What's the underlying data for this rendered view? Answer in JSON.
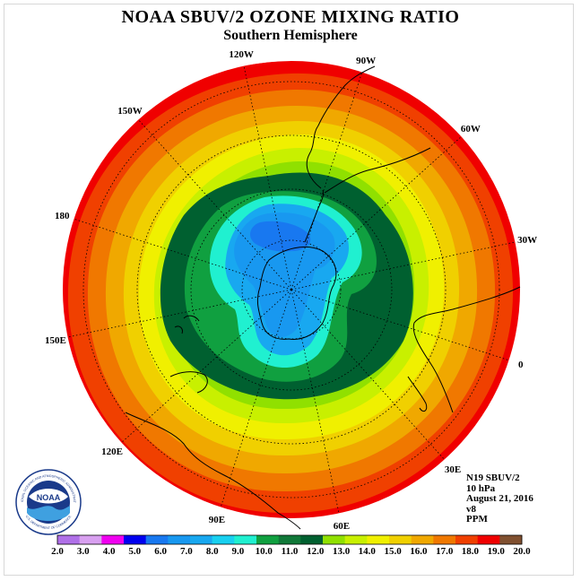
{
  "header": {
    "title": "NOAA SBUV/2 OZONE MIXING RATIO",
    "subtitle": "Southern Hemisphere"
  },
  "map": {
    "projection": "south-polar-stereographic",
    "hemisphere": "Southern",
    "longitude_labels": [
      "90W",
      "60W",
      "30W",
      "0",
      "30E",
      "60E",
      "90E",
      "120E",
      "150E",
      "180",
      "150W",
      "120W"
    ],
    "colors": {
      "land_outline": "#000000",
      "grid_lines": "#000000"
    }
  },
  "info": {
    "instrument": "N19 SBUV/2",
    "pressure_level": "10 hPa",
    "date": "August 21, 2016",
    "version": "v8",
    "units": "PPM"
  },
  "logo": {
    "text": "NOAA",
    "ring_text": "NATIONAL OCEANIC AND ATMOSPHERIC ADMINISTRATION",
    "ring_text_bottom": "U.S. DEPARTMENT OF COMMERCE"
  },
  "colorbar": {
    "labels": [
      "2.0",
      "3.0",
      "4.0",
      "5.0",
      "6.0",
      "7.0",
      "8.0",
      "9.0",
      "10.0",
      "11.0",
      "12.0",
      "13.0",
      "14.0",
      "15.0",
      "16.0",
      "17.0",
      "18.0",
      "19.0",
      "20.0"
    ],
    "colors": [
      "#b070e8",
      "#d8a0f0",
      "#f000f0",
      "#0000f0",
      "#1878f0",
      "#1898f0",
      "#18a8f0",
      "#18d0f0",
      "#20f0d0",
      "#10a040",
      "#107838",
      "#006030",
      "#90e000",
      "#c8f000",
      "#f0f000",
      "#f0d000",
      "#f0a800",
      "#f07800",
      "#f04000",
      "#f00000",
      "#805030"
    ]
  }
}
